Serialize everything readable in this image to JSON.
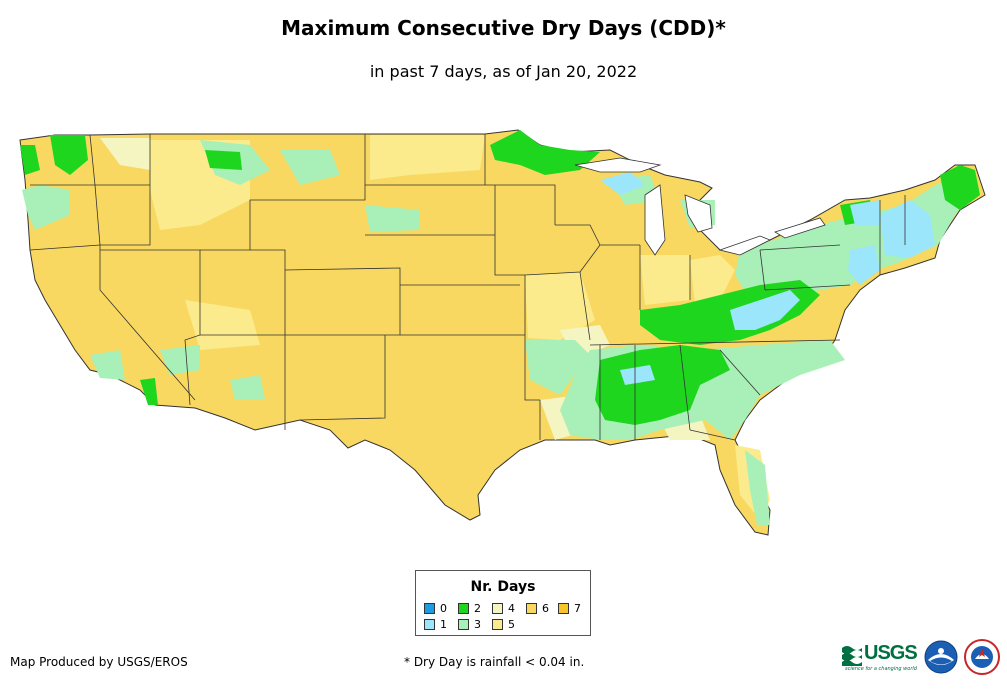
{
  "title": "Maximum Consecutive Dry Days (CDD)*",
  "subtitle": "in past 7 days, as of Jan 20, 2022",
  "legend": {
    "title": "Nr. Days",
    "items": [
      {
        "label": "0",
        "color": "#1e9be3"
      },
      {
        "label": "1",
        "color": "#9be6fa"
      },
      {
        "label": "2",
        "color": "#1fd61f"
      },
      {
        "label": "3",
        "color": "#a8f0b8"
      },
      {
        "label": "4",
        "color": "#f5f5c2"
      },
      {
        "label": "5",
        "color": "#fbeb8c"
      },
      {
        "label": "6",
        "color": "#f8d860"
      },
      {
        "label": "7",
        "color": "#f7c42a"
      }
    ]
  },
  "credit": "Map Produced by USGS/EROS",
  "footnote": "* Dry Day is rainfall < 0.04 in.",
  "logos": {
    "usgs": "USGS",
    "usgs_tagline": "science for a changing world",
    "noaa": "noaa-logo",
    "nws": "nws-logo"
  }
}
